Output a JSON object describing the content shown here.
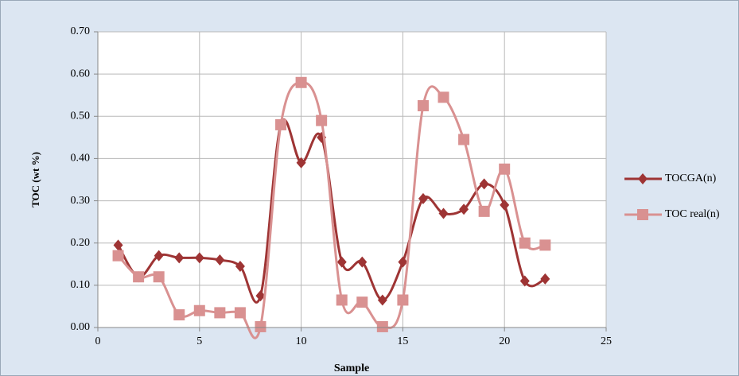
{
  "chart_data": {
    "type": "line",
    "x_label": "Sample",
    "y_label": "TOC (wt %)",
    "xlim": [
      0,
      25
    ],
    "xticks": [
      0,
      5,
      10,
      15,
      20,
      25
    ],
    "ylim": [
      0,
      0.7
    ],
    "yticks": [
      {
        "value": 0,
        "label": "0.00"
      },
      {
        "value": 0.1,
        "label": "0.10"
      },
      {
        "value": 0.2,
        "label": "0.20"
      },
      {
        "value": 0.3,
        "label": "0.30"
      },
      {
        "value": 0.4,
        "label": "0.40"
      },
      {
        "value": 0.5,
        "label": "0.50"
      },
      {
        "value": 0.6,
        "label": "0.60"
      },
      {
        "value": 0.7,
        "label": "0.70"
      }
    ],
    "grid": true,
    "smooth": true,
    "legend": "right",
    "x": [
      1,
      2,
      3,
      4,
      5,
      6,
      7,
      8,
      9,
      10,
      11,
      12,
      13,
      14,
      15,
      16,
      17,
      18,
      19,
      20,
      21,
      22
    ],
    "series": [
      {
        "name": "TOCGA(n)",
        "color": "#9e3434",
        "marker": "diamond",
        "values": [
          0.195,
          0.12,
          0.17,
          0.165,
          0.165,
          0.16,
          0.145,
          0.075,
          0.48,
          0.39,
          0.45,
          0.155,
          0.155,
          0.065,
          0.155,
          0.305,
          0.27,
          0.28,
          0.34,
          0.29,
          0.11,
          0.115
        ]
      },
      {
        "name": "TOC real(n)",
        "color": "#d99191",
        "marker": "square",
        "values": [
          0.17,
          0.12,
          0.12,
          0.03,
          0.04,
          0.035,
          0.035,
          0.002,
          0.48,
          0.58,
          0.49,
          0.065,
          0.06,
          0.002,
          0.065,
          0.525,
          0.545,
          0.445,
          0.275,
          0.375,
          0.2,
          0.195
        ]
      }
    ]
  }
}
